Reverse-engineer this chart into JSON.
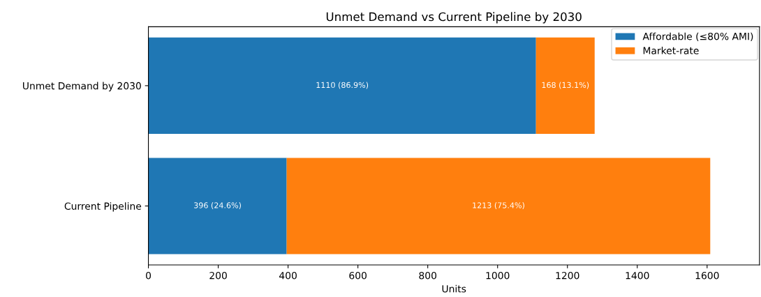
{
  "chart_data": {
    "type": "bar",
    "orientation": "horizontal",
    "stacked": true,
    "title": "Unmet Demand vs Current Pipeline by 2030",
    "xlabel": "Units",
    "categories": [
      "Unmet Demand by 2030",
      "Current Pipeline"
    ],
    "series": [
      {
        "name": "Affordable (≤80% AMI)",
        "color": "#1f77b4",
        "values": [
          1110,
          396
        ],
        "value_labels": [
          "1110 (86.9%)",
          "396 (24.6%)"
        ]
      },
      {
        "name": "Market-rate",
        "color": "#ff7f0e",
        "values": [
          168,
          1213
        ],
        "value_labels": [
          "168 (13.1%)",
          "1213 (75.4%)"
        ]
      }
    ],
    "xlim": [
      0,
      1750
    ],
    "xticks": [
      0,
      200,
      400,
      600,
      800,
      1000,
      1200,
      1400,
      1600
    ],
    "grid": false,
    "legend": "top right"
  }
}
